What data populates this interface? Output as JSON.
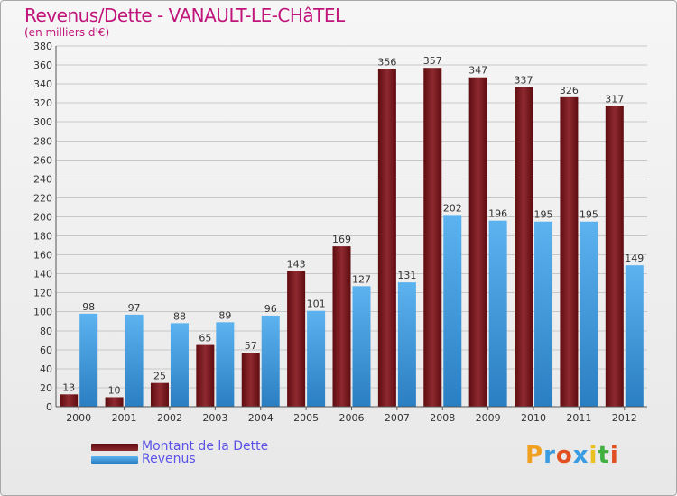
{
  "title": "Revenus/Dette - VANAULT-LE-CHâTEL",
  "subtitle": "(en milliers d'€)",
  "logo_letters": [
    "P",
    "r",
    "o",
    "x",
    "i",
    "t",
    "i"
  ],
  "chart_data": {
    "type": "bar",
    "categories": [
      "2000",
      "2001",
      "2002",
      "2003",
      "2004",
      "2005",
      "2006",
      "2007",
      "2008",
      "2009",
      "2010",
      "2011",
      "2012"
    ],
    "series": [
      {
        "name": "Montant de la Dette",
        "color": "#7a1a20",
        "values": [
          13,
          10,
          25,
          65,
          57,
          143,
          169,
          356,
          357,
          347,
          337,
          326,
          317
        ]
      },
      {
        "name": "Revenus",
        "color": "#4ba3e3",
        "values": [
          98,
          97,
          88,
          89,
          96,
          101,
          127,
          131,
          202,
          196,
          195,
          195,
          149
        ]
      }
    ],
    "ylim": [
      0,
      380
    ],
    "ytick_step": 20,
    "yticks": [
      "0",
      "20",
      "40",
      "60",
      "80",
      "100",
      "120",
      "140",
      "160",
      "180",
      "200",
      "220",
      "240",
      "260",
      "280",
      "300",
      "320",
      "340",
      "360",
      "380"
    ],
    "grid": true,
    "legend_position": "bottom-left"
  }
}
